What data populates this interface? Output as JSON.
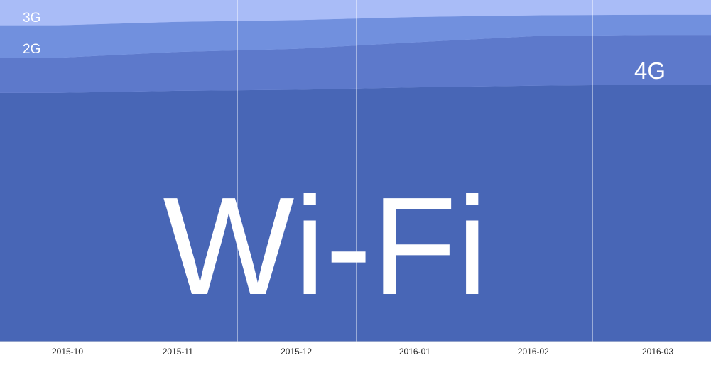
{
  "chart_data": {
    "type": "area",
    "stacked": true,
    "normalized": true,
    "categories": [
      "2015-10",
      "2015-11",
      "2015-12",
      "2016-01",
      "2016-02",
      "2016-03"
    ],
    "series": [
      {
        "name": "Wi-Fi",
        "color": "#4866b6",
        "values": [
          72.8,
          73.4,
          73.7,
          74.4,
          74.9,
          75.2
        ]
      },
      {
        "name": "4G",
        "color": "#5d79cb",
        "values": [
          10.3,
          11.4,
          12.0,
          13.2,
          14.5,
          14.6
        ]
      },
      {
        "name": "2G",
        "color": "#7190de",
        "values": [
          9.5,
          8.8,
          8.4,
          7.4,
          6.1,
          5.9
        ]
      },
      {
        "name": "3G",
        "color": "#a9bcf7",
        "values": [
          7.4,
          6.4,
          5.9,
          5.0,
          4.5,
          4.3
        ]
      }
    ],
    "grid": true,
    "legend": "labels inside bands"
  }
}
